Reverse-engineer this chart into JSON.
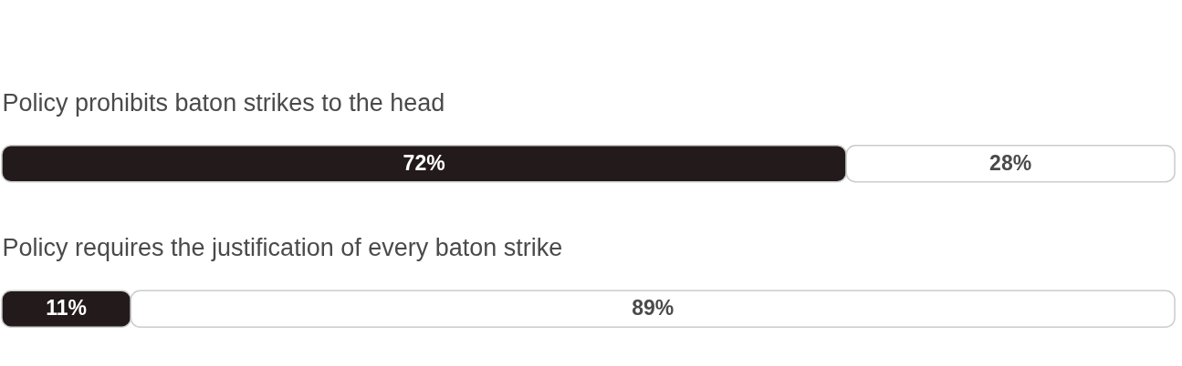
{
  "chart_data": {
    "type": "bar",
    "orientation": "horizontal",
    "stacked": true,
    "tick_labels": "y",
    "categories": [
      "Policy prohibits baton strikes to the head",
      "Policy requires the justification of every baton strike"
    ],
    "series": [
      {
        "color": "#231a1c",
        "values": [
          72,
          11
        ],
        "value_labels": [
          "72%",
          "11%"
        ]
      },
      {
        "color": "#ffffff",
        "values": [
          28,
          89
        ],
        "value_labels": [
          "28%",
          "89%"
        ]
      }
    ]
  }
}
